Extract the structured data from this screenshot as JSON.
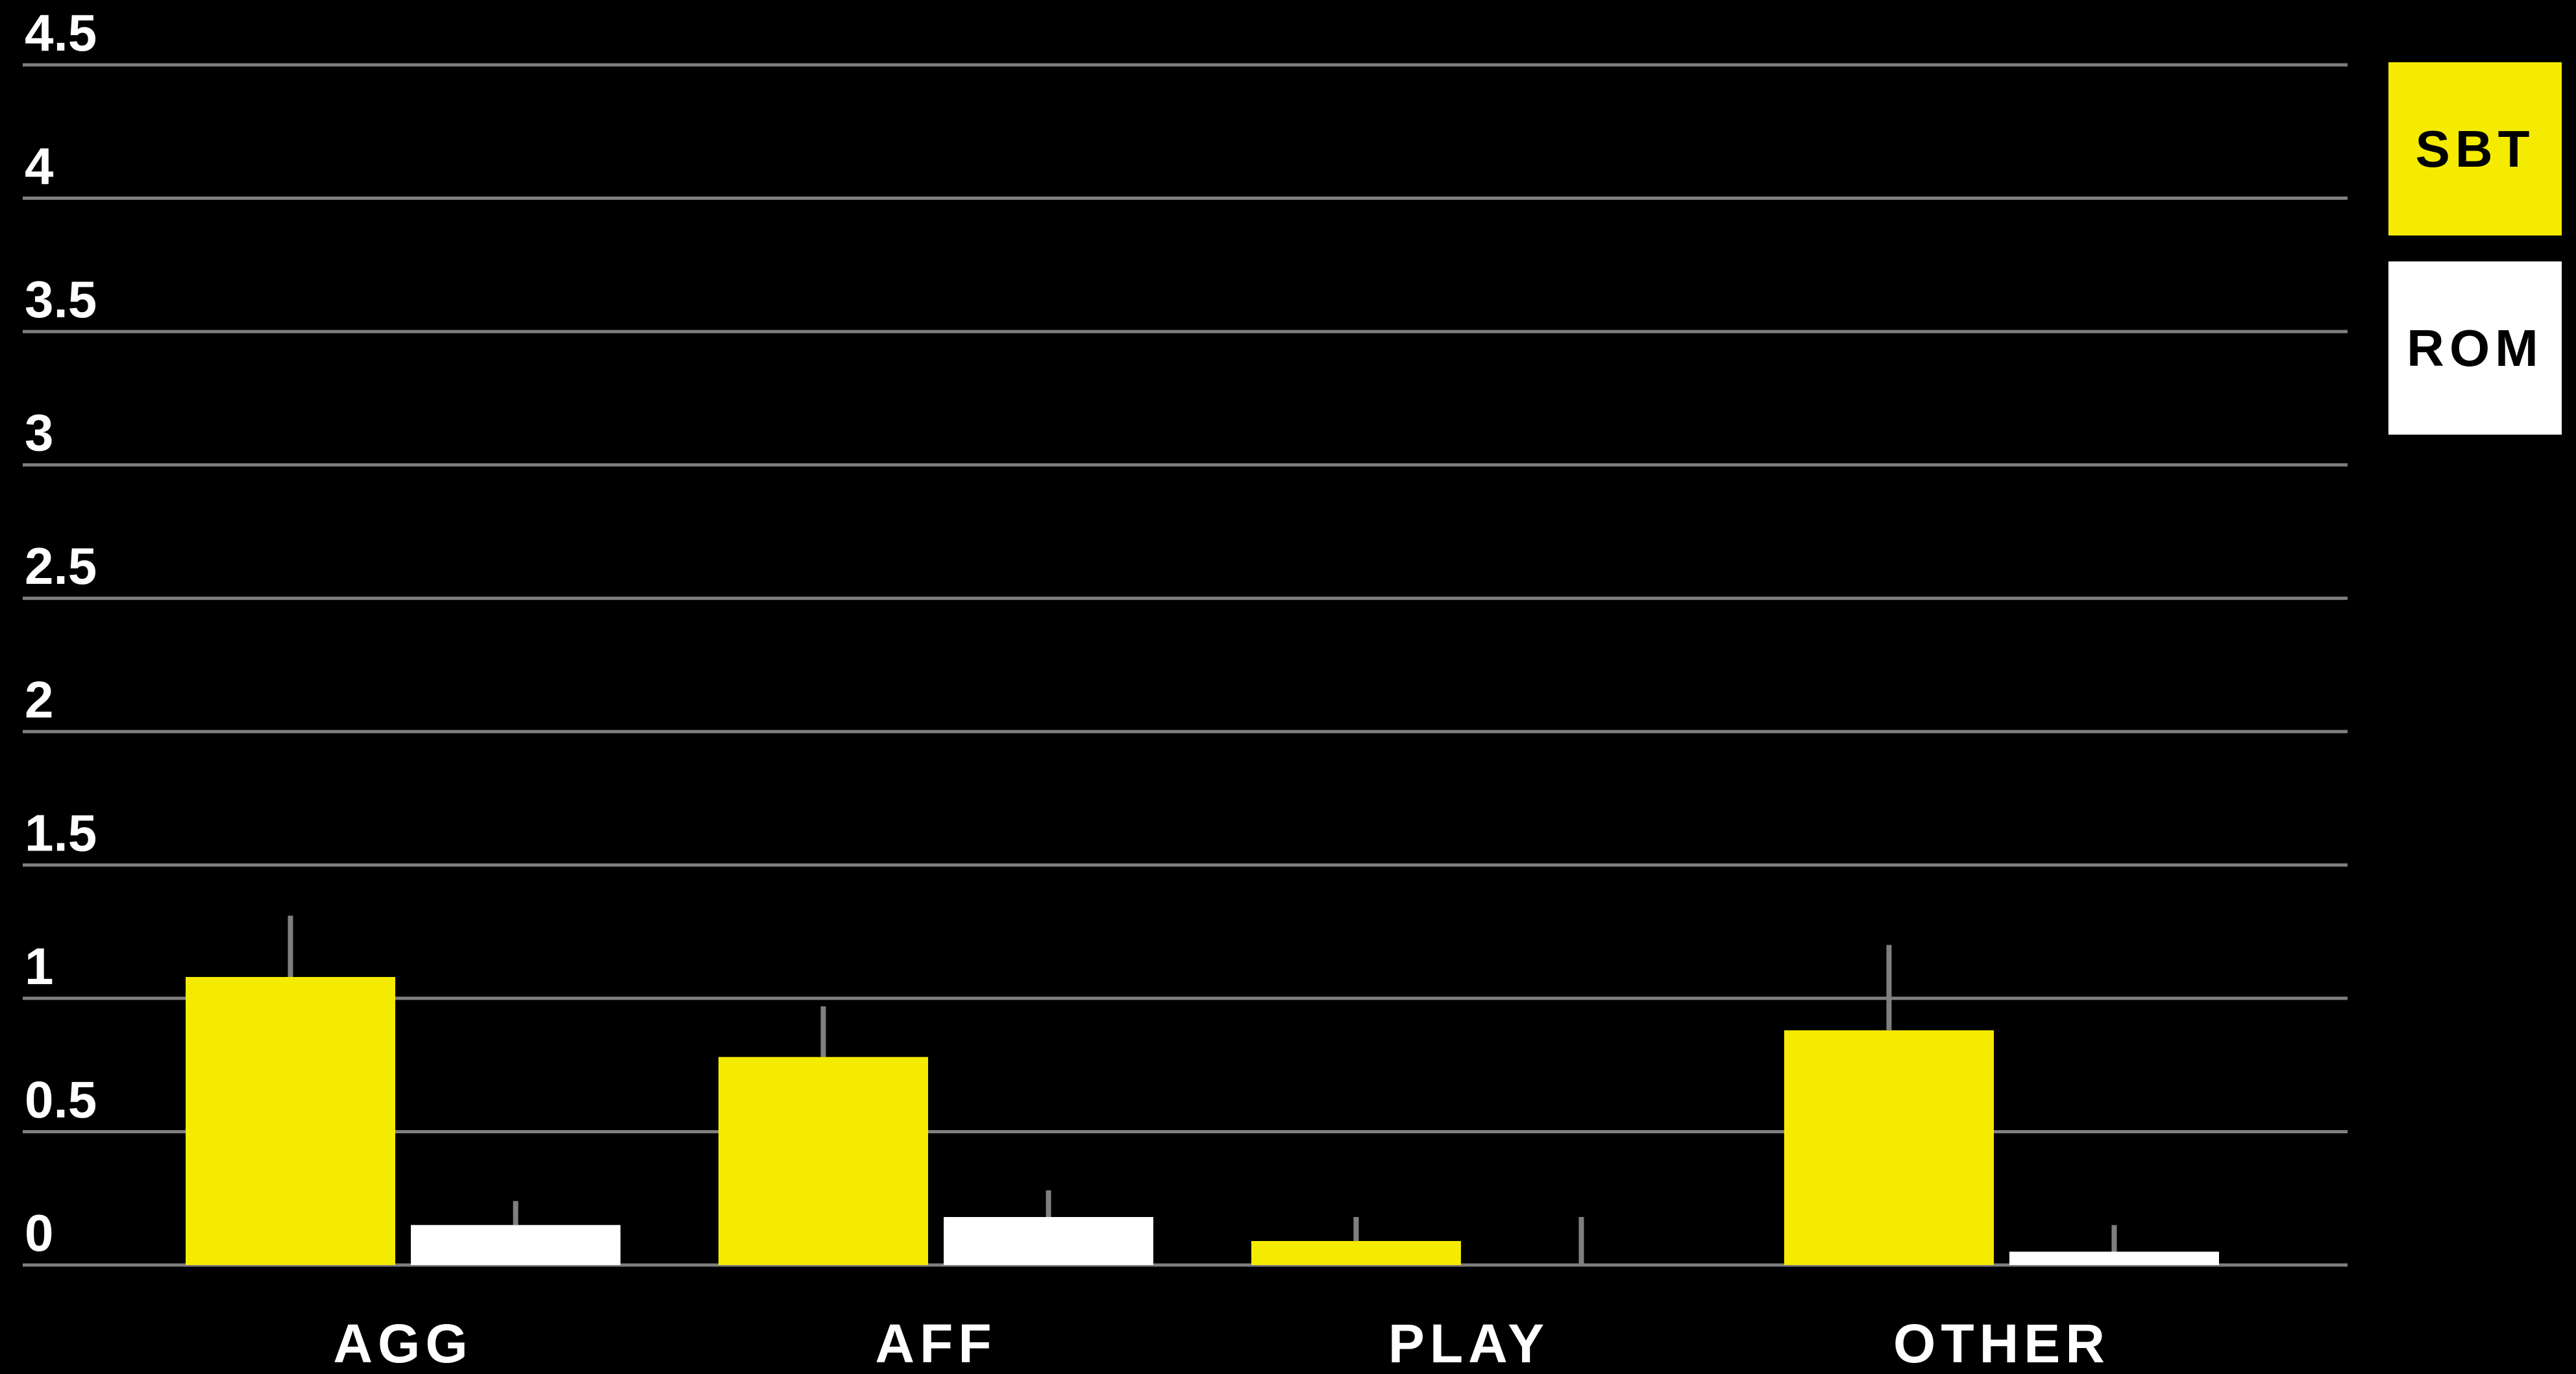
{
  "chart_data": {
    "type": "bar",
    "categories": [
      "AGG",
      "AFF",
      "PLAY",
      "OTHER"
    ],
    "series": [
      {
        "name": "SBT",
        "color": "#f5eb00",
        "values": [
          1.08,
          0.78,
          0.09,
          0.88
        ],
        "errors": [
          0.23,
          0.19,
          0.09,
          0.32
        ]
      },
      {
        "name": "ROM",
        "color": "#ffffff",
        "values": [
          0.15,
          0.18,
          0.0,
          0.05
        ],
        "errors": [
          0.09,
          0.1,
          0.18,
          0.1
        ]
      }
    ],
    "ylim": [
      0,
      4.5
    ],
    "yticks": [
      "0",
      "0.5",
      "1",
      "1.5",
      "2",
      "2.5",
      "3",
      "3.5",
      "4",
      "4.5"
    ],
    "grid": true,
    "gridline_color": "#7f7f7f",
    "error_bar_color": "#7f7f7f",
    "title": "",
    "xlabel": "",
    "ylabel": "",
    "legend_placement": "top-right"
  }
}
